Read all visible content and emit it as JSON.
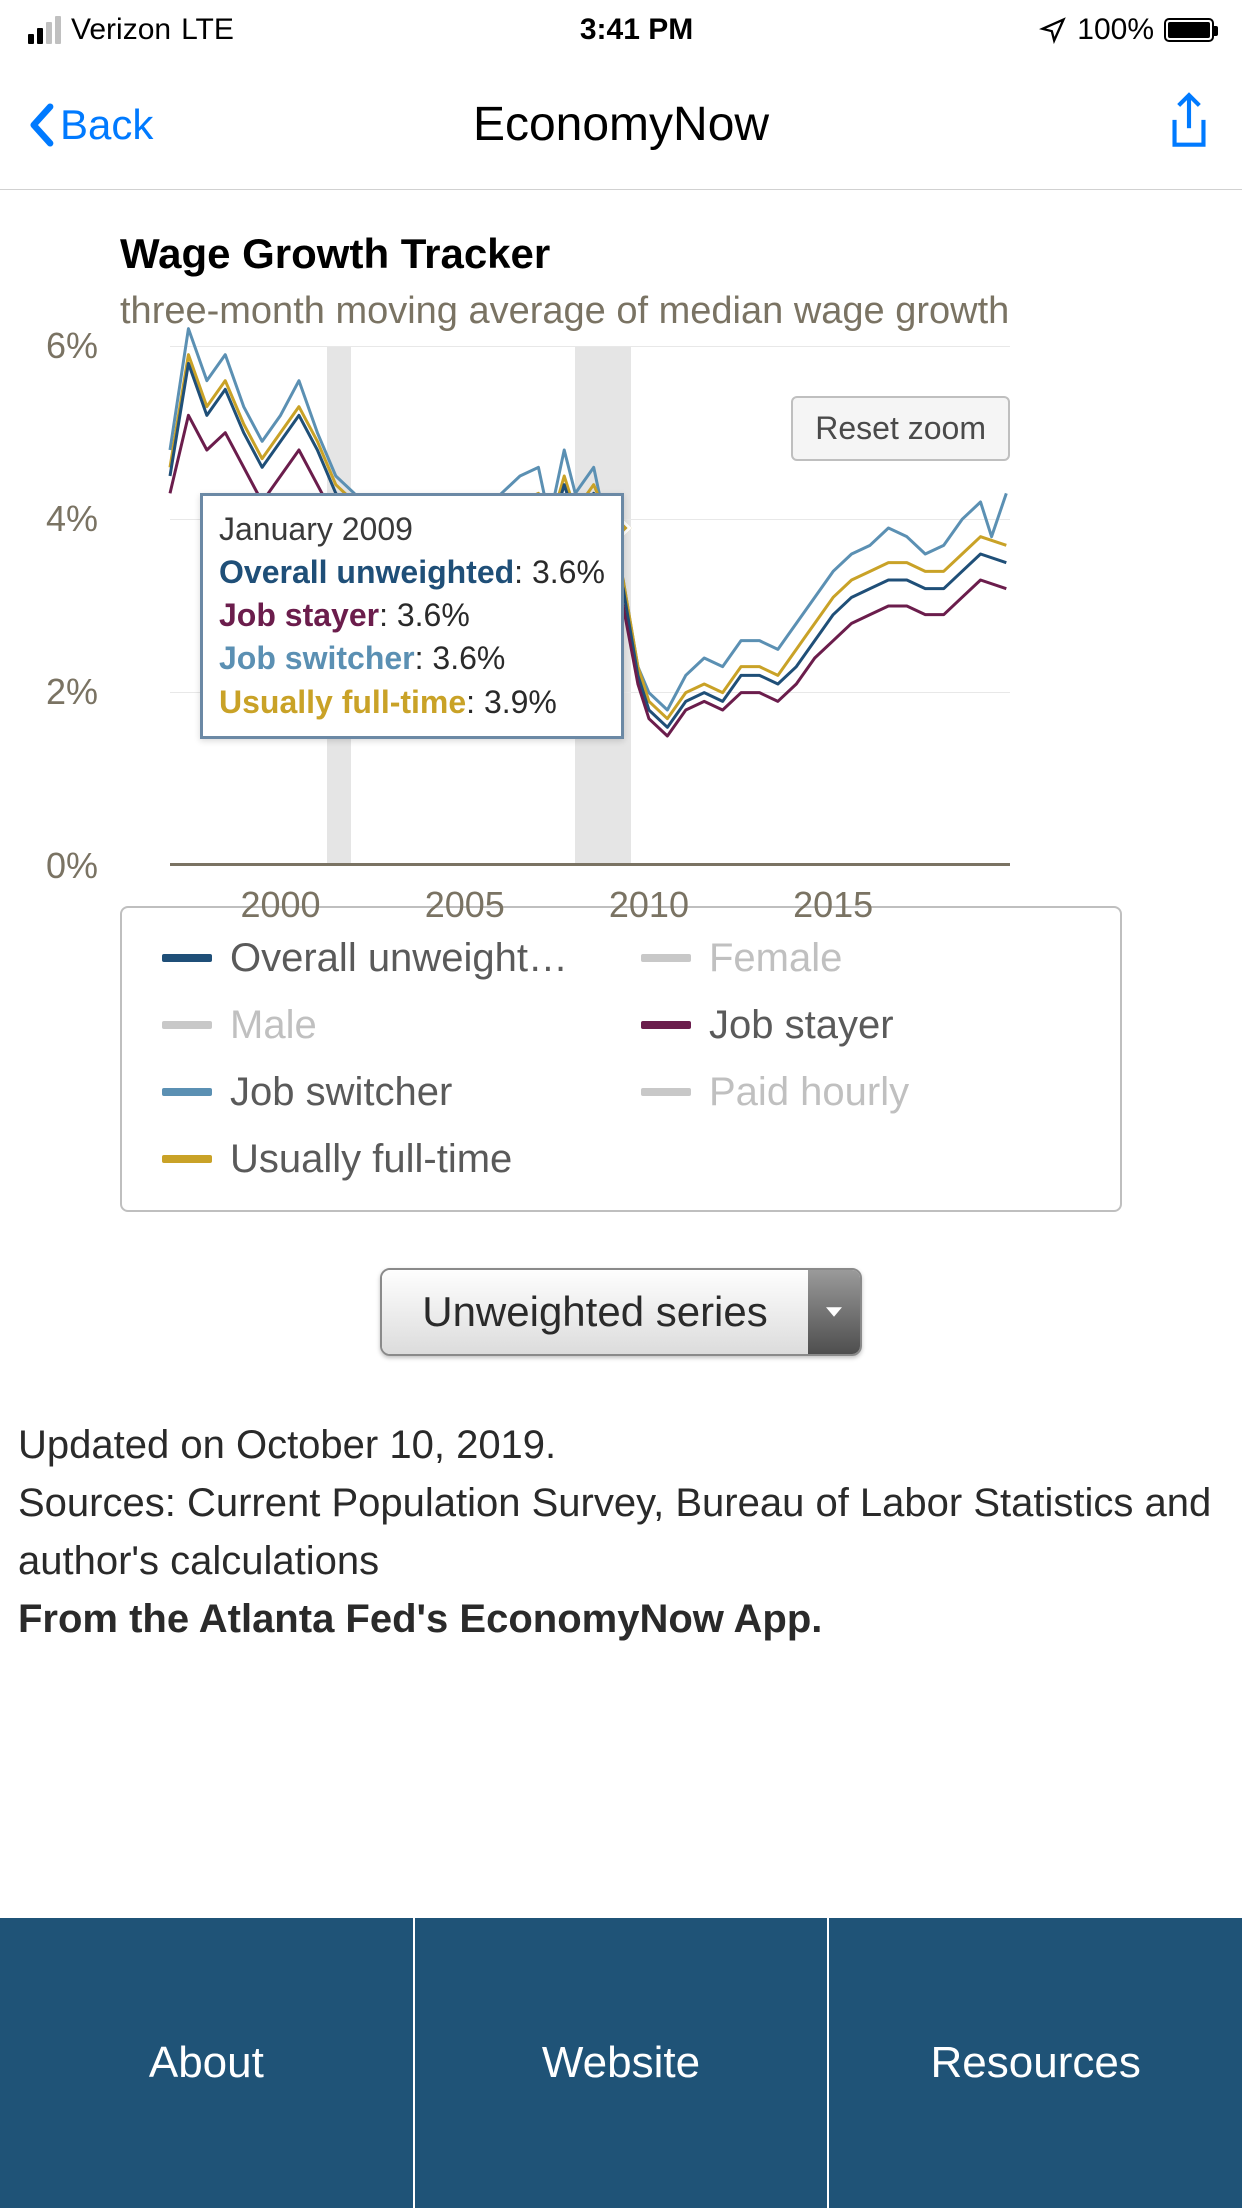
{
  "status": {
    "carrier": "Verizon",
    "network": "LTE",
    "time": "3:41 PM",
    "battery_pct": "100%"
  },
  "nav": {
    "back": "Back",
    "title": "EconomyNow"
  },
  "chart": {
    "title": "Wage Growth Tracker",
    "subtitle": "three-month moving average of median wage growth",
    "type": "line",
    "xlim": [
      1997,
      2019.8
    ],
    "ylim": [
      0,
      6
    ],
    "xticks": [
      2000,
      2005,
      2010,
      2015
    ],
    "yticks": [
      0,
      2,
      4,
      6
    ],
    "ytick_suffix": "%",
    "reset_zoom": "Reset zoom",
    "title_fontsize": 42,
    "subtitle_fontsize": 38,
    "tick_fontsize": 36,
    "background_color": "#ffffff",
    "grid_color": "#e8e8e8",
    "axis_color": "#7a7363",
    "line_width": 3,
    "recession_bands": [
      {
        "start": 2001.25,
        "end": 2001.92
      },
      {
        "start": 2008.0,
        "end": 2009.5
      }
    ],
    "series": [
      {
        "key": "overall",
        "label": "Overall unweight…",
        "color": "#1f4f78",
        "active": true,
        "data": [
          [
            1997,
            4.5
          ],
          [
            1997.5,
            5.8
          ],
          [
            1998,
            5.2
          ],
          [
            1998.5,
            5.5
          ],
          [
            1999,
            5.0
          ],
          [
            1999.5,
            4.6
          ],
          [
            2000,
            4.9
          ],
          [
            2000.5,
            5.2
          ],
          [
            2001,
            4.8
          ],
          [
            2001.5,
            4.3
          ],
          [
            2002,
            4.1
          ],
          [
            2002.5,
            3.8
          ],
          [
            2003,
            3.5
          ],
          [
            2003.5,
            3.4
          ],
          [
            2004,
            3.2
          ],
          [
            2004.5,
            3.4
          ],
          [
            2005,
            3.6
          ],
          [
            2005.5,
            3.8
          ],
          [
            2006,
            4.0
          ],
          [
            2006.5,
            4.1
          ],
          [
            2007,
            4.2
          ],
          [
            2007.3,
            3.8
          ],
          [
            2007.7,
            4.4
          ],
          [
            2008,
            4.0
          ],
          [
            2008.5,
            4.3
          ],
          [
            2009,
            3.6
          ],
          [
            2009.3,
            3.2
          ],
          [
            2009.7,
            2.2
          ],
          [
            2010,
            1.8
          ],
          [
            2010.5,
            1.6
          ],
          [
            2011,
            1.9
          ],
          [
            2011.5,
            2.0
          ],
          [
            2012,
            1.9
          ],
          [
            2012.5,
            2.2
          ],
          [
            2013,
            2.2
          ],
          [
            2013.5,
            2.1
          ],
          [
            2014,
            2.3
          ],
          [
            2014.5,
            2.6
          ],
          [
            2015,
            2.9
          ],
          [
            2015.5,
            3.1
          ],
          [
            2016,
            3.2
          ],
          [
            2016.5,
            3.3
          ],
          [
            2017,
            3.3
          ],
          [
            2017.5,
            3.2
          ],
          [
            2018,
            3.2
          ],
          [
            2018.5,
            3.4
          ],
          [
            2019,
            3.6
          ],
          [
            2019.7,
            3.5
          ]
        ]
      },
      {
        "key": "stayer",
        "label": "Job stayer",
        "color": "#6b1d4c",
        "active": true,
        "data": [
          [
            1997,
            4.3
          ],
          [
            1997.5,
            5.2
          ],
          [
            1998,
            4.8
          ],
          [
            1998.5,
            5.0
          ],
          [
            1999,
            4.6
          ],
          [
            1999.5,
            4.2
          ],
          [
            2000,
            4.5
          ],
          [
            2000.5,
            4.8
          ],
          [
            2001,
            4.4
          ],
          [
            2001.5,
            4.0
          ],
          [
            2002,
            3.8
          ],
          [
            2002.5,
            3.5
          ],
          [
            2003,
            3.3
          ],
          [
            2003.5,
            3.2
          ],
          [
            2004,
            3.0
          ],
          [
            2004.5,
            3.2
          ],
          [
            2005,
            3.4
          ],
          [
            2005.5,
            3.6
          ],
          [
            2006,
            3.8
          ],
          [
            2006.5,
            3.9
          ],
          [
            2007,
            4.0
          ],
          [
            2007.3,
            3.6
          ],
          [
            2007.7,
            4.1
          ],
          [
            2008,
            3.8
          ],
          [
            2008.5,
            4.0
          ],
          [
            2009,
            3.6
          ],
          [
            2009.3,
            3.0
          ],
          [
            2009.7,
            2.1
          ],
          [
            2010,
            1.7
          ],
          [
            2010.5,
            1.5
          ],
          [
            2011,
            1.8
          ],
          [
            2011.5,
            1.9
          ],
          [
            2012,
            1.8
          ],
          [
            2012.5,
            2.0
          ],
          [
            2013,
            2.0
          ],
          [
            2013.5,
            1.9
          ],
          [
            2014,
            2.1
          ],
          [
            2014.5,
            2.4
          ],
          [
            2015,
            2.6
          ],
          [
            2015.5,
            2.8
          ],
          [
            2016,
            2.9
          ],
          [
            2016.5,
            3.0
          ],
          [
            2017,
            3.0
          ],
          [
            2017.5,
            2.9
          ],
          [
            2018,
            2.9
          ],
          [
            2018.5,
            3.1
          ],
          [
            2019,
            3.3
          ],
          [
            2019.7,
            3.2
          ]
        ]
      },
      {
        "key": "switcher",
        "label": "Job switcher",
        "color": "#5b90b3",
        "active": true,
        "data": [
          [
            1997,
            4.8
          ],
          [
            1997.5,
            6.2
          ],
          [
            1998,
            5.6
          ],
          [
            1998.5,
            5.9
          ],
          [
            1999,
            5.3
          ],
          [
            1999.5,
            4.9
          ],
          [
            2000,
            5.2
          ],
          [
            2000.5,
            5.6
          ],
          [
            2001,
            5.0
          ],
          [
            2001.5,
            4.5
          ],
          [
            2002,
            4.3
          ],
          [
            2002.5,
            4.0
          ],
          [
            2003,
            3.7
          ],
          [
            2003.5,
            3.6
          ],
          [
            2004,
            3.4
          ],
          [
            2004.5,
            3.6
          ],
          [
            2005,
            3.9
          ],
          [
            2005.5,
            4.1
          ],
          [
            2006,
            4.3
          ],
          [
            2006.5,
            4.5
          ],
          [
            2007,
            4.6
          ],
          [
            2007.3,
            4.0
          ],
          [
            2007.7,
            4.8
          ],
          [
            2008,
            4.3
          ],
          [
            2008.5,
            4.6
          ],
          [
            2009,
            3.6
          ],
          [
            2009.3,
            3.3
          ],
          [
            2009.7,
            2.3
          ],
          [
            2010,
            2.0
          ],
          [
            2010.5,
            1.8
          ],
          [
            2011,
            2.2
          ],
          [
            2011.5,
            2.4
          ],
          [
            2012,
            2.3
          ],
          [
            2012.5,
            2.6
          ],
          [
            2013,
            2.6
          ],
          [
            2013.5,
            2.5
          ],
          [
            2014,
            2.8
          ],
          [
            2014.5,
            3.1
          ],
          [
            2015,
            3.4
          ],
          [
            2015.5,
            3.6
          ],
          [
            2016,
            3.7
          ],
          [
            2016.5,
            3.9
          ],
          [
            2017,
            3.8
          ],
          [
            2017.5,
            3.6
          ],
          [
            2018,
            3.7
          ],
          [
            2018.5,
            4.0
          ],
          [
            2019,
            4.2
          ],
          [
            2019.3,
            3.8
          ],
          [
            2019.7,
            4.3
          ]
        ]
      },
      {
        "key": "fulltime",
        "label": "Usually full-time",
        "color": "#c9a227",
        "active": true,
        "data": [
          [
            1997,
            4.6
          ],
          [
            1997.5,
            5.9
          ],
          [
            1998,
            5.3
          ],
          [
            1998.5,
            5.6
          ],
          [
            1999,
            5.1
          ],
          [
            1999.5,
            4.7
          ],
          [
            2000,
            5.0
          ],
          [
            2000.5,
            5.3
          ],
          [
            2001,
            4.9
          ],
          [
            2001.5,
            4.4
          ],
          [
            2002,
            4.2
          ],
          [
            2002.5,
            3.9
          ],
          [
            2003,
            3.6
          ],
          [
            2003.5,
            3.5
          ],
          [
            2004,
            3.3
          ],
          [
            2004.5,
            3.5
          ],
          [
            2005,
            3.7
          ],
          [
            2005.5,
            3.9
          ],
          [
            2006,
            4.1
          ],
          [
            2006.5,
            4.2
          ],
          [
            2007,
            4.3
          ],
          [
            2007.3,
            3.9
          ],
          [
            2007.7,
            4.5
          ],
          [
            2008,
            4.1
          ],
          [
            2008.5,
            4.4
          ],
          [
            2009,
            3.9
          ],
          [
            2009.3,
            3.3
          ],
          [
            2009.7,
            2.3
          ],
          [
            2010,
            1.9
          ],
          [
            2010.5,
            1.7
          ],
          [
            2011,
            2.0
          ],
          [
            2011.5,
            2.1
          ],
          [
            2012,
            2.0
          ],
          [
            2012.5,
            2.3
          ],
          [
            2013,
            2.3
          ],
          [
            2013.5,
            2.2
          ],
          [
            2014,
            2.5
          ],
          [
            2014.5,
            2.8
          ],
          [
            2015,
            3.1
          ],
          [
            2015.5,
            3.3
          ],
          [
            2016,
            3.4
          ],
          [
            2016.5,
            3.5
          ],
          [
            2017,
            3.5
          ],
          [
            2017.5,
            3.4
          ],
          [
            2018,
            3.4
          ],
          [
            2018.5,
            3.6
          ],
          [
            2019,
            3.8
          ],
          [
            2019.7,
            3.7
          ]
        ]
      },
      {
        "key": "female",
        "label": "Female",
        "color": "#c8c8c8",
        "active": false,
        "data": []
      },
      {
        "key": "male",
        "label": "Male",
        "color": "#c8c8c8",
        "active": false,
        "data": []
      },
      {
        "key": "hourly",
        "label": "Paid hourly",
        "color": "#c8c8c8",
        "active": false,
        "data": []
      }
    ],
    "tooltip": {
      "x": 2009.0,
      "date": "January 2009",
      "rows": [
        {
          "label": "Overall unweighted",
          "value": "3.6%",
          "color": "#1f4f78"
        },
        {
          "label": "Job stayer",
          "value": "3.6%",
          "color": "#6b1d4c"
        },
        {
          "label": "Job switcher",
          "value": "3.6%",
          "color": "#5b90b3"
        },
        {
          "label": "Usually full-time",
          "value": "3.9%",
          "color": "#c9a227"
        }
      ]
    }
  },
  "legend_order": [
    "overall",
    "female",
    "male",
    "stayer",
    "switcher",
    "hourly",
    "fulltime"
  ],
  "dropdown": {
    "selected": "Unweighted series"
  },
  "meta": {
    "updated": "Updated on October 10, 2019.",
    "sources": "Sources: Current Population Survey, Bureau of Labor Statistics and author's calculations",
    "attribution": "From the Atlanta Fed's EconomyNow App."
  },
  "tabs": {
    "about": "About",
    "website": "Website",
    "resources": "Resources"
  }
}
